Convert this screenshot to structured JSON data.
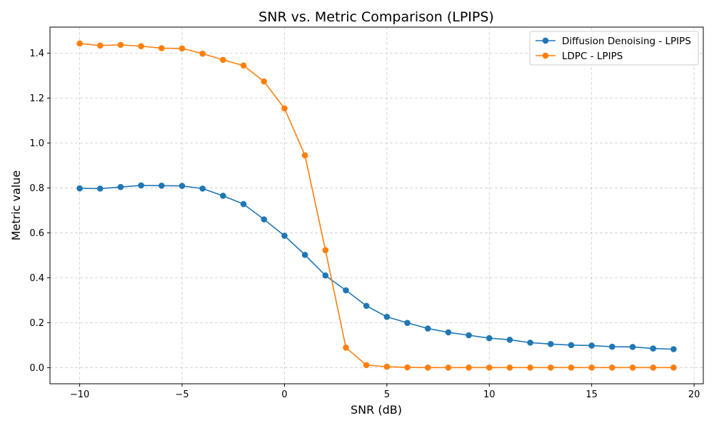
{
  "chart_data": {
    "type": "line",
    "title": "SNR vs. Metric Comparison (LPIPS)",
    "xlabel": "SNR (dB)",
    "ylabel": "Metric value",
    "xlim": [
      -11.45,
      20.45
    ],
    "ylim": [
      -0.072,
      1.516
    ],
    "xticks": [
      -10,
      -5,
      0,
      5,
      10,
      15,
      20
    ],
    "xtick_labels": [
      "−10",
      "−5",
      "0",
      "5",
      "10",
      "15",
      "20"
    ],
    "yticks": [
      0.0,
      0.2,
      0.4,
      0.6,
      0.8,
      1.0,
      1.2,
      1.4
    ],
    "ytick_labels": [
      "0.0",
      "0.2",
      "0.4",
      "0.6",
      "0.8",
      "1.0",
      "1.2",
      "1.4"
    ],
    "grid": true,
    "legend_position": "top-right",
    "x": [
      -10,
      -9,
      -8,
      -7,
      -6,
      -5,
      -4,
      -3,
      -2,
      -1,
      0,
      1,
      2,
      3,
      4,
      5,
      6,
      7,
      8,
      9,
      10,
      11,
      12,
      13,
      14,
      15,
      16,
      17,
      18,
      19
    ],
    "series": [
      {
        "name": "Diffusion Denoising - LPIPS",
        "color": "#1f77b4",
        "values": [
          0.798,
          0.797,
          0.804,
          0.811,
          0.81,
          0.809,
          0.797,
          0.765,
          0.728,
          0.66,
          0.587,
          0.502,
          0.41,
          0.344,
          0.275,
          0.226,
          0.199,
          0.174,
          0.157,
          0.144,
          0.131,
          0.124,
          0.111,
          0.105,
          0.1,
          0.098,
          0.093,
          0.092,
          0.085,
          0.082
        ]
      },
      {
        "name": "LDPC - LPIPS",
        "color": "#ff7f0e",
        "values": [
          1.443,
          1.434,
          1.437,
          1.431,
          1.422,
          1.421,
          1.398,
          1.37,
          1.345,
          1.274,
          1.154,
          0.945,
          0.523,
          0.089,
          0.011,
          0.004,
          0.001,
          0.0,
          0.0,
          0.0,
          0.0,
          0.0,
          0.0,
          0.0,
          0.0,
          0.0,
          0.0,
          0.0,
          0.0,
          0.0
        ]
      }
    ]
  }
}
